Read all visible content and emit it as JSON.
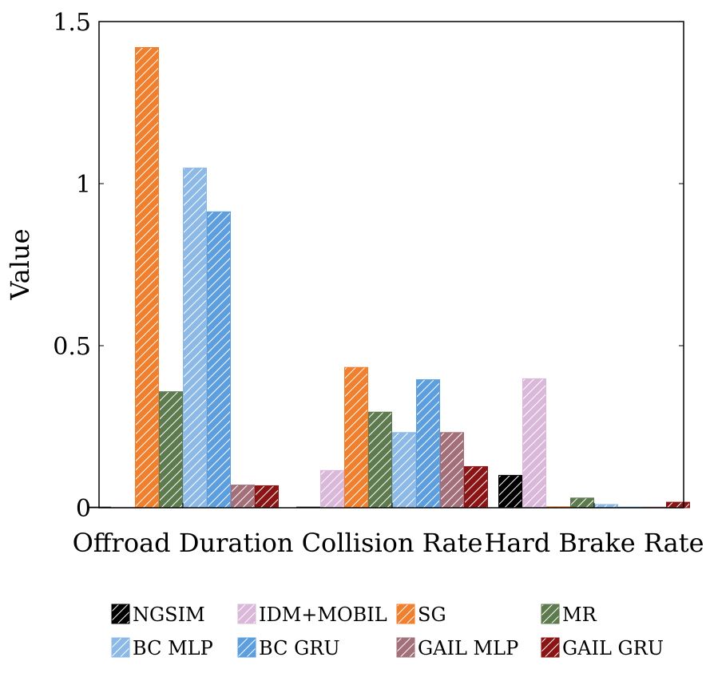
{
  "chart_data": {
    "type": "bar",
    "title": "",
    "xlabel": "",
    "ylabel": "Value",
    "ylim": [
      0,
      1.5
    ],
    "yticks": [
      {
        "value": 0,
        "label": "0"
      },
      {
        "value": 0.5,
        "label": "0.5"
      },
      {
        "value": 1,
        "label": "1"
      },
      {
        "value": 1.5,
        "label": "1.5"
      }
    ],
    "categories": [
      "Offroad Duration",
      "Collision Rate",
      "Hard Brake Rate"
    ],
    "legend_position": "bottom",
    "series": [
      {
        "name": "NGSIM",
        "color": "#000000",
        "values": [
          0.0,
          0.0,
          0.1
        ]
      },
      {
        "name": "IDM+MOBIL",
        "color": "#d9b8d9",
        "values": [
          0.0,
          0.115,
          0.398
        ]
      },
      {
        "name": "SG",
        "color": "#f07f2e",
        "values": [
          1.42,
          0.433,
          0.003
        ]
      },
      {
        "name": "MR",
        "color": "#5e7b4f",
        "values": [
          0.358,
          0.295,
          0.03
        ]
      },
      {
        "name": "BC MLP",
        "color": "#8cb9e6",
        "values": [
          1.048,
          0.232,
          0.01
        ]
      },
      {
        "name": "BC GRU",
        "color": "#5d9fde",
        "values": [
          0.913,
          0.395,
          0.002
        ]
      },
      {
        "name": "GAIL MLP",
        "color": "#a3707a",
        "values": [
          0.07,
          0.232,
          0.002
        ]
      },
      {
        "name": "GAIL GRU",
        "color": "#8b1414",
        "values": [
          0.068,
          0.127,
          0.017
        ]
      }
    ]
  }
}
